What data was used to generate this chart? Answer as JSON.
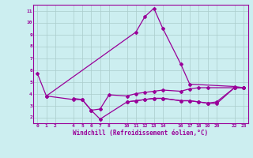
{
  "xlabel": "Windchill (Refroidissement éolien,°C)",
  "background_color": "#cceef0",
  "line_color": "#990099",
  "grid_color": "#aacccc",
  "ylim": [
    1.5,
    11.5
  ],
  "xlim": [
    -0.5,
    23.5
  ],
  "yticks": [
    2,
    3,
    4,
    5,
    6,
    7,
    8,
    9,
    10,
    11
  ],
  "xticks": [
    0,
    1,
    2,
    4,
    5,
    6,
    7,
    8,
    10,
    11,
    12,
    13,
    14,
    16,
    17,
    18,
    19,
    20,
    22,
    23
  ],
  "line1_x": [
    0,
    1,
    11,
    12,
    13,
    14,
    16,
    17,
    22,
    23
  ],
  "line1_y": [
    5.7,
    3.8,
    9.2,
    10.5,
    11.2,
    9.5,
    6.5,
    4.8,
    4.6,
    4.5
  ],
  "line2_x": [
    4,
    5,
    6,
    7,
    8,
    10,
    11,
    12,
    13,
    14,
    16,
    17,
    18,
    19,
    22,
    23
  ],
  "line2_y": [
    3.6,
    3.5,
    2.6,
    2.7,
    3.9,
    3.8,
    4.0,
    4.1,
    4.2,
    4.3,
    4.2,
    4.4,
    4.5,
    4.5,
    4.5,
    4.5
  ],
  "line3_x": [
    1,
    4,
    5,
    6,
    7,
    10,
    11,
    12,
    13,
    14,
    16,
    17,
    18,
    19,
    20,
    22,
    23
  ],
  "line3_y": [
    3.8,
    3.5,
    3.5,
    2.6,
    1.85,
    3.3,
    3.4,
    3.5,
    3.6,
    3.6,
    3.4,
    3.4,
    3.3,
    3.2,
    3.3,
    4.5,
    4.5
  ],
  "line4_x": [
    10,
    11,
    12,
    13,
    14,
    16,
    17,
    18,
    19,
    20,
    22,
    23
  ],
  "line4_y": [
    3.3,
    3.4,
    3.5,
    3.6,
    3.6,
    3.4,
    3.4,
    3.3,
    3.2,
    3.15,
    4.5,
    4.5
  ]
}
